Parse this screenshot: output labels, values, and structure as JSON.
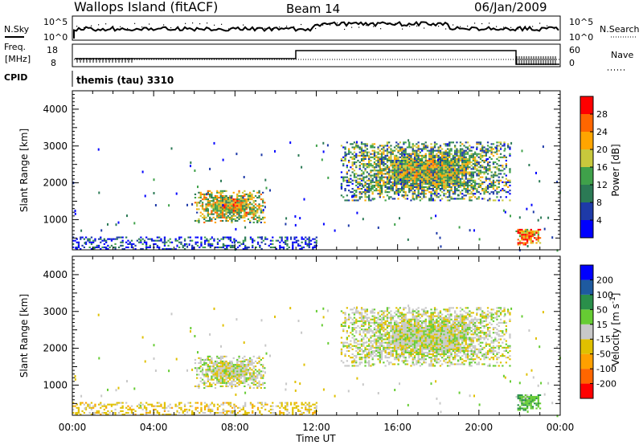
{
  "header": {
    "station": "Wallops Island (fitACF)",
    "beam": "Beam 14",
    "date": "06/Jan/2009"
  },
  "status": {
    "nsky_label": "N.Sky",
    "nsearch_label": "N.Search",
    "freq_label_1": "Freq.",
    "freq_label_2": "[MHz]",
    "nave_label": "Nave",
    "cpid_label": "CPID",
    "cpid_text": "themis (tau) 3310",
    "noise_ticks_left": [
      "10^5",
      "10^0"
    ],
    "noise_ticks_right": [
      "10^5",
      "10^0"
    ],
    "freq_ticks": [
      "18",
      "8"
    ],
    "nave_ticks": [
      "60",
      "0"
    ]
  },
  "colors": {
    "power_scale": [
      "#0000ff",
      "#1e3aa8",
      "#2b7a55",
      "#3fa14a",
      "#c8c83c",
      "#ffa500",
      "#ff6600",
      "#ff0000"
    ],
    "velocity_scale": [
      "#ff0000",
      "#ff6600",
      "#ffa000",
      "#e0c000",
      "#c8c8c8",
      "#66cc33",
      "#2a8f4a",
      "#1e5aa0",
      "#0000ff"
    ]
  },
  "chart_data": [
    {
      "type": "heatmap",
      "panel": "power",
      "xlabel": "",
      "ylabel": "Slant Range [km]",
      "x_ticks": [
        "00:00",
        "04:00",
        "08:00",
        "12:00",
        "16:00",
        "20:00",
        "00:00"
      ],
      "xlim": [
        0,
        24
      ],
      "ylim": [
        180,
        4500
      ],
      "y_ticks": [
        1000,
        2000,
        3000,
        4000
      ],
      "colorbar_label": "Power [dB]",
      "colorbar_ticks": [
        4,
        8,
        12,
        16,
        20,
        24,
        28
      ],
      "clim": [
        0,
        30
      ],
      "regions": [
        {
          "t0": 6.0,
          "t1": 9.5,
          "r0": 900,
          "r1": 1800,
          "value": 20
        },
        {
          "t0": 13.2,
          "t1": 21.5,
          "r0": 1500,
          "r1": 3100,
          "value": 16
        },
        {
          "t0": 21.8,
          "t1": 23.0,
          "r0": 300,
          "r1": 750,
          "value": 26
        },
        {
          "t0": 0.0,
          "t1": 12.0,
          "r0": 180,
          "r1": 500,
          "value": 8
        }
      ]
    },
    {
      "type": "heatmap",
      "panel": "velocity",
      "xlabel": "Time UT",
      "ylabel": "Slant Range [km]",
      "x_ticks": [
        "00:00",
        "04:00",
        "08:00",
        "12:00",
        "16:00",
        "20:00",
        "00:00"
      ],
      "xlim": [
        0,
        24
      ],
      "ylim": [
        180,
        4500
      ],
      "y_ticks": [
        1000,
        2000,
        3000,
        4000
      ],
      "colorbar_label": "Velocity [m s-1]",
      "colorbar_ticks": [
        -200,
        -100,
        -50,
        -15,
        15,
        50,
        100,
        200
      ],
      "clim": [
        -250,
        250
      ],
      "regions": [
        {
          "t0": 6.0,
          "t1": 9.5,
          "r0": 900,
          "r1": 1800,
          "value": 0
        },
        {
          "t0": 13.2,
          "t1": 21.5,
          "r0": 1500,
          "r1": 3100,
          "value": 0
        },
        {
          "t0": 21.8,
          "t1": 23.0,
          "r0": 300,
          "r1": 750,
          "value": 40
        },
        {
          "t0": 0.0,
          "t1": 12.0,
          "r0": 180,
          "r1": 500,
          "value": -30
        }
      ]
    }
  ]
}
